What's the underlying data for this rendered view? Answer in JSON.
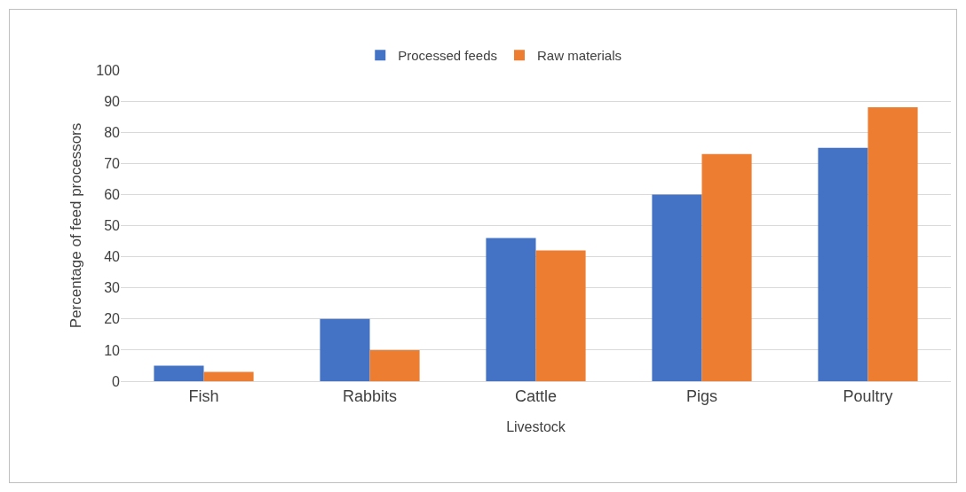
{
  "chart_data": {
    "type": "bar",
    "xlabel": "Livestock",
    "ylabel": "Percentage of feed processors",
    "categories": [
      "Fish",
      "Rabbits",
      "Cattle",
      "Pigs",
      "Poultry"
    ],
    "series": [
      {
        "name": "Processed feeds",
        "color": "#4472c4",
        "values": [
          5,
          20,
          46,
          60,
          75
        ]
      },
      {
        "name": "Raw materials",
        "color": "#ed7d31",
        "values": [
          3,
          10,
          42,
          73,
          88
        ]
      }
    ],
    "ylim": [
      0,
      100
    ],
    "yticks": [
      0,
      10,
      20,
      30,
      40,
      50,
      60,
      70,
      80,
      90,
      100
    ],
    "grid": "y",
    "legend": "top"
  }
}
